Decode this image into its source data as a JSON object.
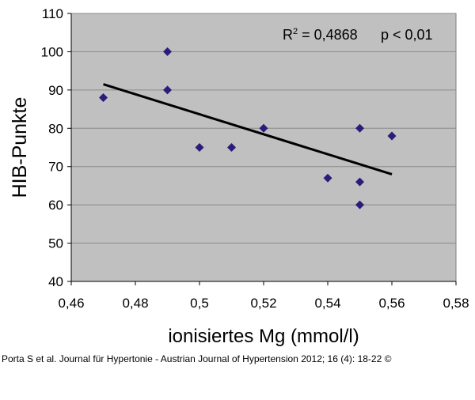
{
  "chart_data": {
    "type": "scatter",
    "xlabel": "ionisiertes Mg (mmol/l)",
    "ylabel": "HIB-Punkte",
    "xlim": [
      0.46,
      0.58
    ],
    "ylim": [
      40,
      110
    ],
    "x_ticks": [
      0.46,
      0.48,
      0.5,
      0.52,
      0.54,
      0.56,
      0.58
    ],
    "x_tick_labels": [
      "0,46",
      "0,48",
      "0,5",
      "0,52",
      "0,54",
      "0,56",
      "0,58"
    ],
    "y_ticks": [
      40,
      50,
      60,
      70,
      80,
      90,
      100,
      110
    ],
    "y_tick_labels": [
      "40",
      "50",
      "60",
      "70",
      "80",
      "90",
      "100",
      "110"
    ],
    "grid": "horizontal",
    "legend": "none",
    "marker": "diamond",
    "colors": {
      "marker": "#2e1a7a",
      "plot_background": "#c0c0c0",
      "trendline": "#000000",
      "grid": "#8a8a8a"
    },
    "points": [
      {
        "x": 0.47,
        "y": 88
      },
      {
        "x": 0.49,
        "y": 100
      },
      {
        "x": 0.49,
        "y": 90
      },
      {
        "x": 0.5,
        "y": 75
      },
      {
        "x": 0.51,
        "y": 75
      },
      {
        "x": 0.52,
        "y": 80
      },
      {
        "x": 0.54,
        "y": 67
      },
      {
        "x": 0.55,
        "y": 80
      },
      {
        "x": 0.55,
        "y": 66
      },
      {
        "x": 0.55,
        "y": 60
      },
      {
        "x": 0.56,
        "y": 78
      }
    ],
    "trendline": {
      "x": [
        0.47,
        0.56
      ],
      "y": [
        91.5,
        68
      ]
    },
    "annotations": {
      "r2_prefix": "R",
      "r2_sup": "2",
      "r2_value": " = 0,4868",
      "p_value": "p < 0,01"
    }
  },
  "citation": "Porta S et al. Journal für Hypertonie - Austrian Journal of Hypertension 2012; 16 (4): 18-22 ©"
}
